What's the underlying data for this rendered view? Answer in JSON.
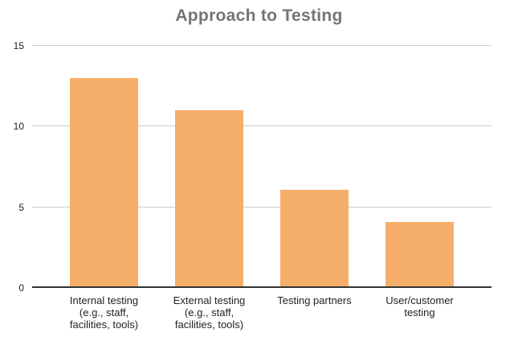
{
  "chart_data": {
    "type": "bar",
    "title": "Approach to Testing",
    "categories": [
      "Internal testing\n(e.g., staff,\nfacilities, tools)",
      "External testing\n(e.g., staff,\nfacilities, tools)",
      "Testing partners",
      "User/customer\ntesting"
    ],
    "values": [
      13,
      11,
      6,
      4
    ],
    "xlabel": "",
    "ylabel": "",
    "ylim": [
      0,
      15
    ],
    "yticks": [
      0,
      5,
      10,
      15
    ],
    "grid": "horizontal",
    "legend_position": "none",
    "colors": {
      "bar": "#F6AE6B",
      "gridline": "#CCCCCC",
      "axis_line": "#333333",
      "title": "#757575",
      "tick_label": "#222222"
    }
  }
}
